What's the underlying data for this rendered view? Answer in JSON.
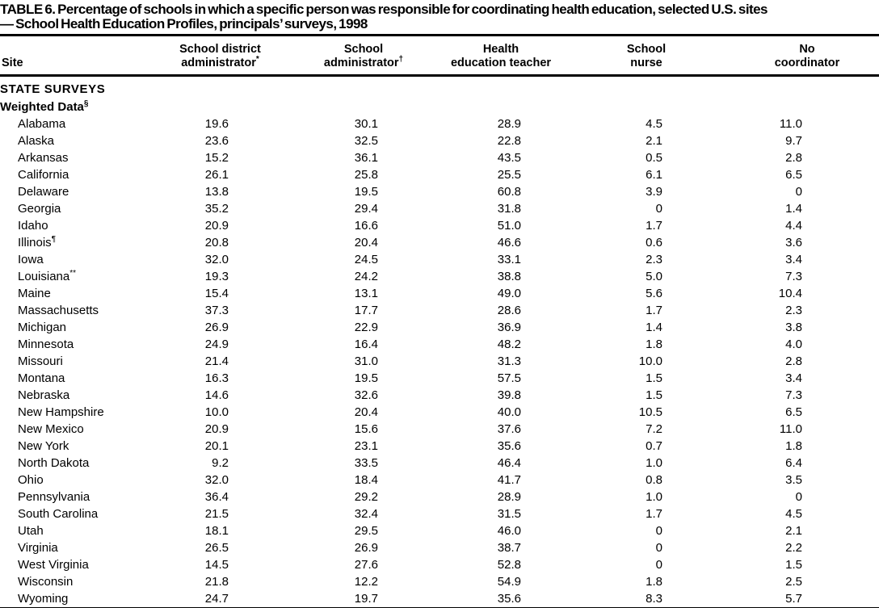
{
  "title": {
    "line1": "TABLE 6. Percentage of schools in which a specific person was responsible for coordinating health education, selected U.S. sites",
    "line2": "— School Health Education Profiles, principals’ surveys, 1998"
  },
  "table": {
    "header": {
      "site": "Site",
      "columns": [
        {
          "line1": "School district",
          "line2": "administrator",
          "marker": "*"
        },
        {
          "line1": "School",
          "line2": "administrator",
          "marker": "†"
        },
        {
          "line1": "Health",
          "line2": "education teacher",
          "marker": ""
        },
        {
          "line1": "School",
          "line2": "nurse",
          "marker": ""
        },
        {
          "line1": "No",
          "line2": "coordinator",
          "marker": ""
        }
      ]
    },
    "section_heading": {
      "label": "STATE SURVEYS",
      "marker": ""
    },
    "subsection_heading": {
      "label": "Weighted Data",
      "marker": "§"
    },
    "rows": [
      {
        "site": "Alabama",
        "marker": "",
        "values": [
          "19.6",
          "30.1",
          "28.9",
          "4.5",
          "11.0"
        ]
      },
      {
        "site": "Alaska",
        "marker": "",
        "values": [
          "23.6",
          "32.5",
          "22.8",
          "2.1",
          "9.7"
        ]
      },
      {
        "site": "Arkansas",
        "marker": "",
        "values": [
          "15.2",
          "36.1",
          "43.5",
          "0.5",
          "2.8"
        ]
      },
      {
        "site": "California",
        "marker": "",
        "values": [
          "26.1",
          "25.8",
          "25.5",
          "6.1",
          "6.5"
        ]
      },
      {
        "site": "Delaware",
        "marker": "",
        "values": [
          "13.8",
          "19.5",
          "60.8",
          "3.9",
          "0"
        ]
      },
      {
        "site": "Georgia",
        "marker": "",
        "values": [
          "35.2",
          "29.4",
          "31.8",
          "0",
          "1.4"
        ]
      },
      {
        "site": "Idaho",
        "marker": "",
        "values": [
          "20.9",
          "16.6",
          "51.0",
          "1.7",
          "4.4"
        ]
      },
      {
        "site": "Illinois",
        "marker": "¶",
        "values": [
          "20.8",
          "20.4",
          "46.6",
          "0.6",
          "3.6"
        ]
      },
      {
        "site": "Iowa",
        "marker": "",
        "values": [
          "32.0",
          "24.5",
          "33.1",
          "2.3",
          "3.4"
        ]
      },
      {
        "site": "Louisiana",
        "marker": "**",
        "values": [
          "19.3",
          "24.2",
          "38.8",
          "5.0",
          "7.3"
        ]
      },
      {
        "site": "Maine",
        "marker": "",
        "values": [
          "15.4",
          "13.1",
          "49.0",
          "5.6",
          "10.4"
        ]
      },
      {
        "site": "Massachusetts",
        "marker": "",
        "values": [
          "37.3",
          "17.7",
          "28.6",
          "1.7",
          "2.3"
        ]
      },
      {
        "site": "Michigan",
        "marker": "",
        "values": [
          "26.9",
          "22.9",
          "36.9",
          "1.4",
          "3.8"
        ]
      },
      {
        "site": "Minnesota",
        "marker": "",
        "values": [
          "24.9",
          "16.4",
          "48.2",
          "1.8",
          "4.0"
        ]
      },
      {
        "site": "Missouri",
        "marker": "",
        "values": [
          "21.4",
          "31.0",
          "31.3",
          "10.0",
          "2.8"
        ]
      },
      {
        "site": "Montana",
        "marker": "",
        "values": [
          "16.3",
          "19.5",
          "57.5",
          "1.5",
          "3.4"
        ]
      },
      {
        "site": "Nebraska",
        "marker": "",
        "values": [
          "14.6",
          "32.6",
          "39.8",
          "1.5",
          "7.3"
        ]
      },
      {
        "site": "New Hampshire",
        "marker": "",
        "values": [
          "10.0",
          "20.4",
          "40.0",
          "10.5",
          "6.5"
        ]
      },
      {
        "site": "New Mexico",
        "marker": "",
        "values": [
          "20.9",
          "15.6",
          "37.6",
          "7.2",
          "11.0"
        ]
      },
      {
        "site": "New York",
        "marker": "",
        "values": [
          "20.1",
          "23.1",
          "35.6",
          "0.7",
          "1.8"
        ]
      },
      {
        "site": "North Dakota",
        "marker": "",
        "values": [
          "9.2",
          "33.5",
          "46.4",
          "1.0",
          "6.4"
        ]
      },
      {
        "site": "Ohio",
        "marker": "",
        "values": [
          "32.0",
          "18.4",
          "41.7",
          "0.8",
          "3.5"
        ]
      },
      {
        "site": "Pennsylvania",
        "marker": "",
        "values": [
          "36.4",
          "29.2",
          "28.9",
          "1.0",
          "0"
        ]
      },
      {
        "site": "South Carolina",
        "marker": "",
        "values": [
          "21.5",
          "32.4",
          "31.5",
          "1.7",
          "4.5"
        ]
      },
      {
        "site": "Utah",
        "marker": "",
        "values": [
          "18.1",
          "29.5",
          "46.0",
          "0",
          "2.1"
        ]
      },
      {
        "site": "Virginia",
        "marker": "",
        "values": [
          "26.5",
          "26.9",
          "38.7",
          "0",
          "2.2"
        ]
      },
      {
        "site": "West Virginia",
        "marker": "",
        "values": [
          "14.5",
          "27.6",
          "52.8",
          "0",
          "1.5"
        ]
      },
      {
        "site": "Wisconsin",
        "marker": "",
        "values": [
          "21.8",
          "12.2",
          "54.9",
          "1.8",
          "2.5"
        ]
      },
      {
        "site": "Wyoming",
        "marker": "",
        "values": [
          "24.7",
          "19.7",
          "35.6",
          "8.3",
          "5.7"
        ]
      }
    ]
  }
}
